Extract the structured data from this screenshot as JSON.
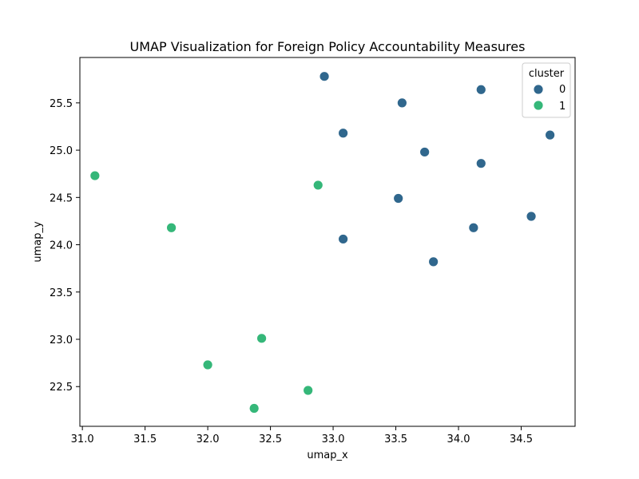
{
  "chart_data": {
    "type": "scatter",
    "title": "UMAP Visualization for Foreign Policy Accountability Measures",
    "xlabel": "umap_x",
    "ylabel": "umap_y",
    "xlim": [
      30.98,
      34.93
    ],
    "ylim": [
      22.08,
      25.98
    ],
    "xticks": [
      "31.0",
      "31.5",
      "32.0",
      "32.5",
      "33.0",
      "33.5",
      "34.0",
      "34.5"
    ],
    "yticks": [
      "22.5",
      "23.0",
      "23.5",
      "24.0",
      "24.5",
      "25.0",
      "25.5"
    ],
    "xtick_values": [
      31.0,
      31.5,
      32.0,
      32.5,
      33.0,
      33.5,
      34.0,
      34.5
    ],
    "ytick_values": [
      22.5,
      23.0,
      23.5,
      24.0,
      24.5,
      25.0,
      25.5
    ],
    "grid": false,
    "legend": {
      "title": "cluster",
      "placement": "top-right"
    },
    "series": [
      {
        "name": "0",
        "color": "#30678d",
        "points": [
          {
            "x": 32.93,
            "y": 25.78
          },
          {
            "x": 34.18,
            "y": 25.64
          },
          {
            "x": 33.55,
            "y": 25.5
          },
          {
            "x": 33.08,
            "y": 25.18
          },
          {
            "x": 34.73,
            "y": 25.16
          },
          {
            "x": 33.73,
            "y": 24.98
          },
          {
            "x": 34.18,
            "y": 24.86
          },
          {
            "x": 33.52,
            "y": 24.49
          },
          {
            "x": 34.58,
            "y": 24.3
          },
          {
            "x": 34.12,
            "y": 24.18
          },
          {
            "x": 33.08,
            "y": 24.06
          },
          {
            "x": 33.8,
            "y": 23.82
          }
        ]
      },
      {
        "name": "1",
        "color": "#35b779",
        "points": [
          {
            "x": 31.1,
            "y": 24.73
          },
          {
            "x": 32.88,
            "y": 24.63
          },
          {
            "x": 31.71,
            "y": 24.18
          },
          {
            "x": 32.43,
            "y": 23.01
          },
          {
            "x": 32.0,
            "y": 22.73
          },
          {
            "x": 32.8,
            "y": 22.46
          },
          {
            "x": 32.37,
            "y": 22.27
          }
        ]
      }
    ]
  }
}
